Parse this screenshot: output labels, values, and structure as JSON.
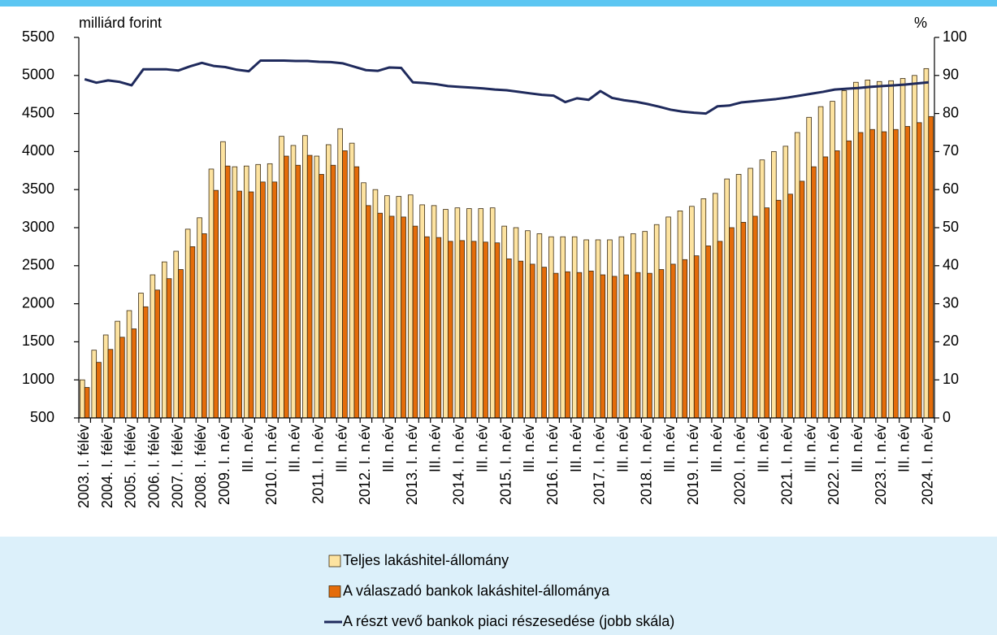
{
  "chart_data": {
    "type": "bar",
    "ylabel": "milliárd forint",
    "y2label": "%",
    "categories": [
      "2003. I. félév",
      null,
      "2004. I. félév",
      null,
      "2005. I. félév",
      null,
      "2006. I. félév",
      null,
      "2007. I. félév",
      null,
      "2008. I. félév",
      null,
      "2009. I. n.év",
      null,
      "III. n.év",
      null,
      "2010. I. n.év",
      null,
      "III. n.év",
      null,
      "2011. I. n.év",
      null,
      "III. n.év",
      null,
      "2012. I. n.év",
      null,
      "III. n.év",
      null,
      "2013. I. n.év",
      null,
      "III. n.év",
      null,
      "2014. I. n.év",
      null,
      "III. n.év",
      null,
      "2015. I. n.év",
      null,
      "III. n.év",
      null,
      "2016. I. n.év",
      null,
      "III. n.év",
      null,
      "2017. I. n.év",
      null,
      "III. n.év",
      null,
      "2018. I. n.év",
      null,
      "III. n.év",
      null,
      "2019. I. n.év",
      null,
      "III. n.év",
      null,
      "2020. I. n.év",
      null,
      "III. n.év",
      null,
      "2021. I. n.év",
      null,
      "III. n.év",
      null,
      "2022. I. n.év",
      null,
      "III. n.év",
      null,
      "2023. I. n.év",
      null,
      "III. n.év",
      null,
      "2024. I. n.év"
    ],
    "series": [
      {
        "name": "Teljes lakáshitel-állomány",
        "type": "bar",
        "color": "#fde3a0",
        "values": [
          1000,
          1390,
          1590,
          1770,
          1910,
          2140,
          2380,
          2550,
          2690,
          2980,
          3130,
          3770,
          4130,
          3800,
          3810,
          3830,
          3840,
          4200,
          4080,
          4210,
          3940,
          4090,
          4300,
          4110,
          3590,
          3500,
          3420,
          3410,
          3430,
          3300,
          3290,
          3240,
          3260,
          3250,
          3250,
          3260,
          3020,
          3000,
          2960,
          2920,
          2880,
          2880,
          2880,
          2840,
          2840,
          2840,
          2880,
          2920,
          2950,
          3040,
          3140,
          3220,
          3280,
          3380,
          3450,
          3640,
          3700,
          3780,
          3890,
          4000,
          4070,
          4250,
          4450,
          4590,
          4660,
          4800,
          4910,
          4940,
          4920,
          4930,
          4960,
          5000,
          5090
        ]
      },
      {
        "name": "A válaszadó bankok lakáshitel-állománya",
        "type": "bar",
        "color": "#e46c0a",
        "values": [
          900,
          1230,
          1400,
          1560,
          1670,
          1960,
          2180,
          2330,
          2450,
          2750,
          2920,
          3490,
          3810,
          3480,
          3470,
          3600,
          3600,
          3940,
          3820,
          3950,
          3700,
          3820,
          4010,
          3800,
          3290,
          3190,
          3150,
          3140,
          3020,
          2880,
          2870,
          2820,
          2830,
          2820,
          2810,
          2800,
          2590,
          2560,
          2520,
          2480,
          2400,
          2420,
          2410,
          2430,
          2380,
          2360,
          2380,
          2410,
          2400,
          2450,
          2520,
          2580,
          2630,
          2760,
          2820,
          3000,
          3070,
          3150,
          3260,
          3360,
          3440,
          3610,
          3800,
          3930,
          4010,
          4140,
          4250,
          4290,
          4260,
          4290,
          4330,
          4380,
          4460
        ]
      },
      {
        "name": "A részt vevő bankok piaci részesedése (jobb skála)",
        "type": "line",
        "axis": "y2",
        "color": "#1f2a5c",
        "values": [
          89,
          88.1,
          88.7,
          88.3,
          87.4,
          91.6,
          91.6,
          91.6,
          91.3,
          92.4,
          93.3,
          92.5,
          92.2,
          91.5,
          91.1,
          93.9,
          93.9,
          93.9,
          93.8,
          93.8,
          93.6,
          93.5,
          93.2,
          92.3,
          91.4,
          91.2,
          92.1,
          92.0,
          88.2,
          88.0,
          87.7,
          87.2,
          87.0,
          86.8,
          86.6,
          86.3,
          86.1,
          85.7,
          85.3,
          84.9,
          84.7,
          83.0,
          84.0,
          83.6,
          85.9,
          84.1,
          83.5,
          83.1,
          82.5,
          81.8,
          81.0,
          80.5,
          80.2,
          80.0,
          81.9,
          82.1,
          82.9,
          83.2,
          83.5,
          83.8,
          84.2,
          84.7,
          85.2,
          85.7,
          86.3,
          86.5,
          86.7,
          87.0,
          87.2,
          87.4,
          87.6,
          87.9,
          88.2
        ]
      }
    ],
    "ylim": [
      500,
      5500
    ],
    "yticks": [
      500,
      1000,
      1500,
      2000,
      2500,
      3000,
      3500,
      4000,
      4500,
      5000,
      5500
    ],
    "y2lim": [
      0,
      100
    ],
    "y2ticks": [
      0,
      10,
      20,
      30,
      40,
      50,
      60,
      70,
      80,
      90,
      100
    ],
    "grid": false,
    "legend": "bottom"
  }
}
